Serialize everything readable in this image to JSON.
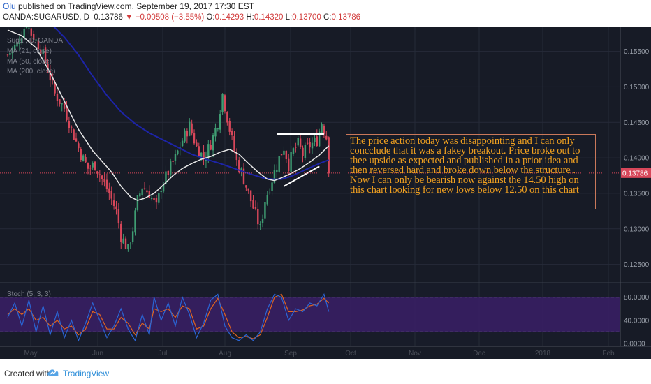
{
  "header": {
    "user": "Olu",
    "published": "published on TradingView.com, September 19, 2017 17:30 EST",
    "symbol": "OANDA:SUGARUSD, D",
    "last": "0.13786",
    "arrow": "▼",
    "change": "−0.00508 (−3.55%)",
    "o_label": "O:",
    "o_value": "0.14293",
    "h_label": "H:",
    "h_value": "0.14320",
    "l_label": "L:",
    "l_value": "0.13700",
    "c_label": "C:",
    "c_value": "0.13786"
  },
  "legend": {
    "series": "Sugar, D, OANDA",
    "ma21": "MA (21, close)",
    "ma50": "MA (50, close)",
    "ma200": "MA (200, close)"
  },
  "annotation": "The price action today was disappointing and I can only concclude that it was a fakey breakout. Price broke out to thee upside as expected and published in a prior idea and then reversed hard and broke down below the structure . Now I can only be bearish now against the 14.50 high on this chart looking for new lows below 12.50 on this chart",
  "stoch_label": "Stoch (5, 3, 3)",
  "footer": {
    "created_with": "Created with",
    "brand": "TradingView"
  },
  "colors": {
    "background": "#171b26",
    "up": "#3f9d73",
    "down": "#d8475a",
    "ma21": "#e8e8e8",
    "ma50": "#1d24a8",
    "stoch_k": "#2a66d6",
    "stoch_d": "#e06420",
    "stoch_band": "#3a1f66",
    "annotation_text": "#f0a020",
    "last_price": "#d8475a"
  },
  "chart_data": {
    "type": "candlestick",
    "price_axis": [
      "0.15500",
      "0.15000",
      "0.14500",
      "0.14000",
      "0.13500",
      "0.13000",
      "0.12500"
    ],
    "price_range": [
      0.1225,
      0.1585
    ],
    "last_price_label": "0.13786",
    "last_price": 0.13786,
    "stoch_axis": [
      "80.0000",
      "40.0000",
      "0.0000"
    ],
    "stoch_range": [
      -5,
      105
    ],
    "x_labels": [
      "May",
      "Jun",
      "Jul",
      "Aug",
      "Sep",
      "Oct",
      "Nov",
      "Dec",
      "2018",
      "Feb"
    ],
    "price_anchors": [
      [
        0,
        0.1545
      ],
      [
        4,
        0.156
      ],
      [
        8,
        0.159
      ],
      [
        10,
        0.1575
      ],
      [
        14,
        0.1555
      ],
      [
        17,
        0.1525
      ],
      [
        20,
        0.149
      ],
      [
        24,
        0.147
      ],
      [
        27,
        0.144
      ],
      [
        31,
        0.1405
      ],
      [
        34,
        0.1385
      ],
      [
        37,
        0.139
      ],
      [
        40,
        0.137
      ],
      [
        43,
        0.135
      ],
      [
        46,
        0.1325
      ],
      [
        48,
        0.129
      ],
      [
        51,
        0.127
      ],
      [
        53,
        0.13
      ],
      [
        55,
        0.134
      ],
      [
        57,
        0.136
      ],
      [
        60,
        0.135
      ],
      [
        63,
        0.133
      ],
      [
        65,
        0.136
      ],
      [
        68,
        0.138
      ],
      [
        71,
        0.14
      ],
      [
        74,
        0.1425
      ],
      [
        77,
        0.1445
      ],
      [
        80,
        0.1415
      ],
      [
        83,
        0.14
      ],
      [
        86,
        0.142
      ],
      [
        89,
        0.145
      ],
      [
        91,
        0.149
      ],
      [
        94,
        0.144
      ],
      [
        97,
        0.1395
      ],
      [
        99,
        0.138
      ],
      [
        101,
        0.136
      ],
      [
        103,
        0.134
      ],
      [
        105,
        0.132
      ],
      [
        107,
        0.13
      ],
      [
        109,
        0.134
      ],
      [
        111,
        0.136
      ],
      [
        113,
        0.138
      ],
      [
        115,
        0.14
      ],
      [
        117,
        0.1415
      ],
      [
        119,
        0.139
      ],
      [
        121,
        0.141
      ],
      [
        123,
        0.142
      ],
      [
        125,
        0.1405
      ],
      [
        127,
        0.1415
      ],
      [
        129,
        0.142
      ],
      [
        131,
        0.1425
      ],
      [
        133,
        0.145
      ],
      [
        135,
        0.1429
      ],
      [
        136,
        0.13786
      ]
    ],
    "ma21": [
      [
        0,
        0.158
      ],
      [
        6,
        0.1572
      ],
      [
        12,
        0.1555
      ],
      [
        18,
        0.152
      ],
      [
        24,
        0.148
      ],
      [
        30,
        0.144
      ],
      [
        36,
        0.141
      ],
      [
        40,
        0.1395
      ],
      [
        44,
        0.138
      ],
      [
        48,
        0.136
      ],
      [
        52,
        0.1345
      ],
      [
        55,
        0.134
      ],
      [
        58,
        0.1343
      ],
      [
        62,
        0.135
      ],
      [
        66,
        0.1362
      ],
      [
        70,
        0.1375
      ],
      [
        74,
        0.1385
      ],
      [
        78,
        0.1392
      ],
      [
        82,
        0.1398
      ],
      [
        86,
        0.1402
      ],
      [
        90,
        0.1408
      ],
      [
        94,
        0.1412
      ],
      [
        98,
        0.1405
      ],
      [
        102,
        0.1392
      ],
      [
        106,
        0.138
      ],
      [
        110,
        0.137
      ],
      [
        113,
        0.1368
      ],
      [
        116,
        0.1372
      ],
      [
        120,
        0.1378
      ],
      [
        124,
        0.1385
      ],
      [
        128,
        0.1394
      ],
      [
        132,
        0.1404
      ],
      [
        136,
        0.1417
      ]
    ],
    "ma50": [
      [
        18,
        0.159
      ],
      [
        24,
        0.157
      ],
      [
        30,
        0.1545
      ],
      [
        36,
        0.1515
      ],
      [
        42,
        0.1488
      ],
      [
        48,
        0.1465
      ],
      [
        54,
        0.1448
      ],
      [
        60,
        0.1435
      ],
      [
        66,
        0.1425
      ],
      [
        72,
        0.1415
      ],
      [
        78,
        0.1405
      ],
      [
        84,
        0.1398
      ],
      [
        90,
        0.1392
      ],
      [
        96,
        0.1385
      ],
      [
        102,
        0.1378
      ],
      [
        108,
        0.1372
      ],
      [
        112,
        0.137
      ],
      [
        116,
        0.137
      ],
      [
        120,
        0.1374
      ],
      [
        124,
        0.138
      ],
      [
        128,
        0.1386
      ],
      [
        132,
        0.1392
      ],
      [
        136,
        0.1397
      ]
    ],
    "trendline_top": [
      [
        114,
        0.14335
      ],
      [
        134,
        0.14335
      ]
    ],
    "trendline_bottom": [
      [
        117,
        0.136
      ],
      [
        132,
        0.1388
      ]
    ],
    "stoch_k": [
      [
        0,
        45
      ],
      [
        3,
        70
      ],
      [
        6,
        30
      ],
      [
        9,
        75
      ],
      [
        12,
        20
      ],
      [
        15,
        65
      ],
      [
        18,
        15
      ],
      [
        21,
        55
      ],
      [
        24,
        10
      ],
      [
        27,
        40
      ],
      [
        30,
        5
      ],
      [
        33,
        35
      ],
      [
        36,
        70
      ],
      [
        39,
        40
      ],
      [
        42,
        10
      ],
      [
        45,
        30
      ],
      [
        48,
        60
      ],
      [
        51,
        25
      ],
      [
        54,
        5
      ],
      [
        57,
        50
      ],
      [
        60,
        15
      ],
      [
        62,
        80
      ],
      [
        65,
        40
      ],
      [
        68,
        70
      ],
      [
        71,
        30
      ],
      [
        74,
        80
      ],
      [
        77,
        50
      ],
      [
        80,
        10
      ],
      [
        83,
        35
      ],
      [
        86,
        75
      ],
      [
        89,
        85
      ],
      [
        92,
        30
      ],
      [
        95,
        10
      ],
      [
        98,
        5
      ],
      [
        101,
        15
      ],
      [
        104,
        5
      ],
      [
        107,
        20
      ],
      [
        110,
        60
      ],
      [
        113,
        85
      ],
      [
        116,
        80
      ],
      [
        119,
        40
      ],
      [
        122,
        60
      ],
      [
        125,
        55
      ],
      [
        128,
        70
      ],
      [
        131,
        65
      ],
      [
        134,
        85
      ],
      [
        136,
        55
      ]
    ],
    "stoch_d": [
      [
        0,
        50
      ],
      [
        3,
        60
      ],
      [
        6,
        50
      ],
      [
        9,
        60
      ],
      [
        12,
        40
      ],
      [
        15,
        45
      ],
      [
        18,
        30
      ],
      [
        21,
        40
      ],
      [
        24,
        25
      ],
      [
        27,
        30
      ],
      [
        30,
        15
      ],
      [
        33,
        25
      ],
      [
        36,
        55
      ],
      [
        39,
        50
      ],
      [
        42,
        25
      ],
      [
        45,
        25
      ],
      [
        48,
        45
      ],
      [
        51,
        35
      ],
      [
        54,
        15
      ],
      [
        57,
        35
      ],
      [
        60,
        25
      ],
      [
        62,
        60
      ],
      [
        65,
        55
      ],
      [
        68,
        60
      ],
      [
        71,
        45
      ],
      [
        74,
        65
      ],
      [
        77,
        60
      ],
      [
        80,
        25
      ],
      [
        83,
        30
      ],
      [
        86,
        60
      ],
      [
        89,
        78
      ],
      [
        92,
        50
      ],
      [
        95,
        20
      ],
      [
        98,
        10
      ],
      [
        101,
        12
      ],
      [
        104,
        8
      ],
      [
        107,
        15
      ],
      [
        110,
        45
      ],
      [
        113,
        80
      ],
      [
        116,
        85
      ],
      [
        119,
        55
      ],
      [
        122,
        55
      ],
      [
        125,
        58
      ],
      [
        128,
        65
      ],
      [
        131,
        68
      ],
      [
        134,
        78
      ],
      [
        136,
        70
      ]
    ]
  }
}
